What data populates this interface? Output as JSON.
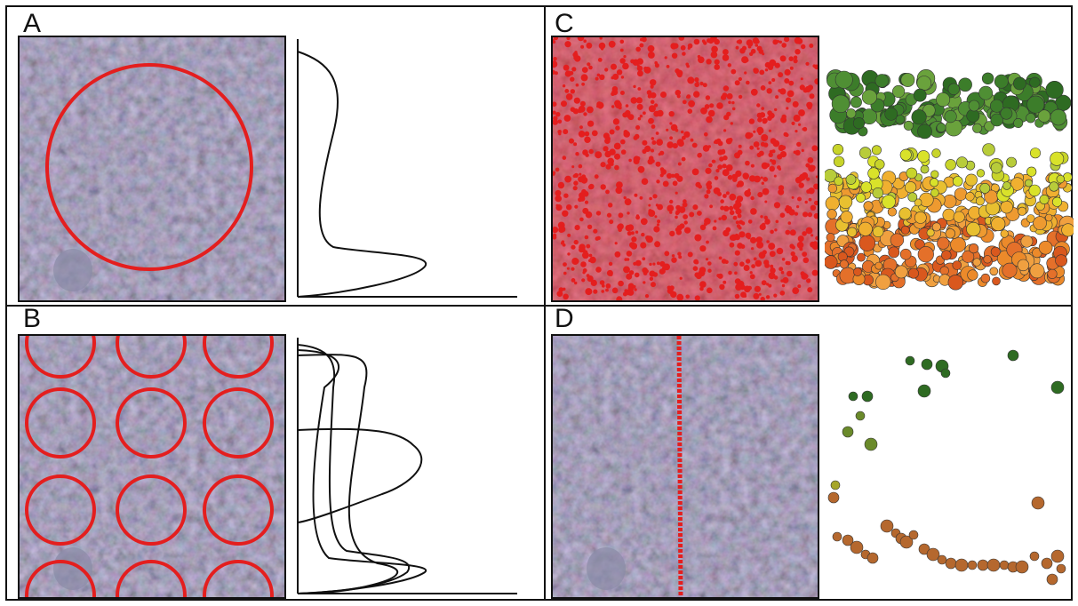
{
  "panels": [
    {
      "id": "A",
      "label": "A",
      "overlay": "single-large-plot-circle",
      "profile_curves": 1
    },
    {
      "id": "B",
      "label": "B",
      "overlay": "grid-of-12-plot-circles",
      "profile_curves": 4
    },
    {
      "id": "C",
      "label": "C",
      "overlay": "dense-red-point-cloud",
      "side_view": "full-point-cloud-profile"
    },
    {
      "id": "D",
      "label": "D",
      "overlay": "single-transect-line",
      "side_view": "transect-point-profile"
    }
  ],
  "colors": {
    "overlay_red": "#e41e1e",
    "canopy_top_green": "#2e6b22",
    "mid_yellow": "#d9e22a",
    "lower_orange": "#ec8a2a",
    "ground_brown": "#b5682e",
    "stroke": "#111111"
  }
}
